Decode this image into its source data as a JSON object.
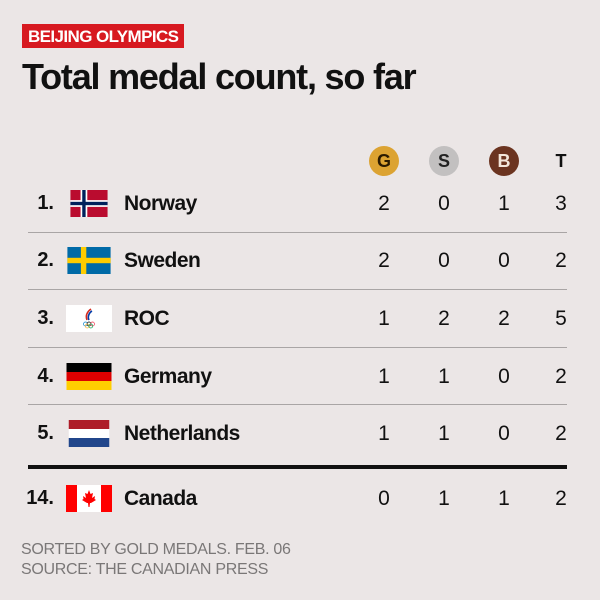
{
  "kicker": "BEIJING OLYMPICS",
  "title": "Total medal count, so far",
  "colors": {
    "gold": "#dca332",
    "silver": "#c2c0c0",
    "bronze": "#6b3420",
    "kicker": "#d71920"
  },
  "chart_data": {
    "type": "table",
    "columns": [
      "G",
      "S",
      "B",
      "T"
    ],
    "rows": [
      {
        "rank": "1.",
        "country": "Norway",
        "flag": "norway-flag",
        "values": [
          "2",
          "0",
          "1",
          "3"
        ]
      },
      {
        "rank": "2.",
        "country": "Sweden",
        "flag": "sweden-flag",
        "values": [
          "2",
          "0",
          "0",
          "2"
        ]
      },
      {
        "rank": "3.",
        "country": "ROC",
        "flag": "roc-flag",
        "values": [
          "1",
          "2",
          "2",
          "5"
        ]
      },
      {
        "rank": "4.",
        "country": "Germany",
        "flag": "germany-flag",
        "values": [
          "1",
          "1",
          "0",
          "2"
        ]
      },
      {
        "rank": "5.",
        "country": "Netherlands",
        "flag": "netherlands-flag",
        "values": [
          "1",
          "1",
          "0",
          "2"
        ]
      },
      {
        "rank": "14.",
        "country": "Canada",
        "flag": "canada-flag",
        "values": [
          "0",
          "1",
          "1",
          "2"
        ]
      }
    ]
  },
  "footer": {
    "note": "SORTED BY GOLD MEDALS. FEB. 06",
    "source": "SOURCE: THE CANADIAN PRESS"
  }
}
